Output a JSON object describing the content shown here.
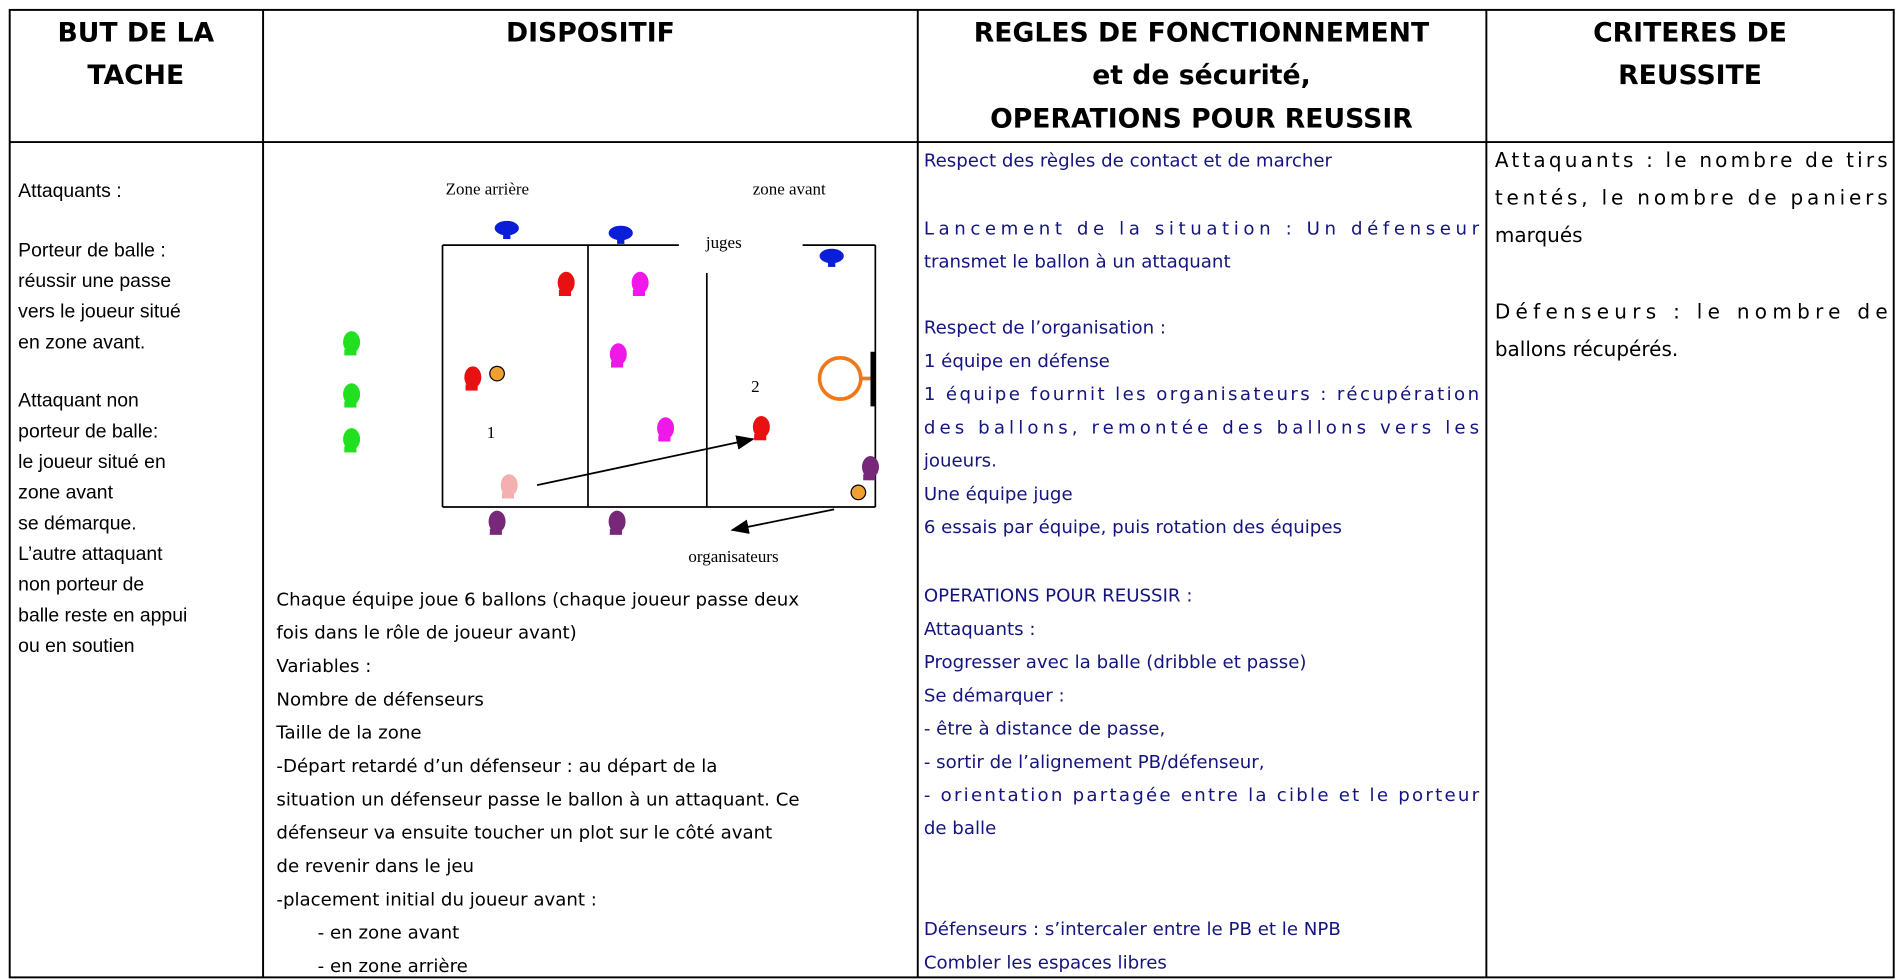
{
  "header": [
    [
      "BUT DE LA",
      "TACHE"
    ],
    [
      "DISPOSITIF"
    ],
    [
      "REGLES DE FONCTIONNEMENT",
      "et de sécurité,",
      "OPERATIONS POUR REUSSIR"
    ],
    [
      "CRITERES DE",
      "REUSSITE"
    ]
  ],
  "but": [
    [
      "Attaquants :"
    ],
    [
      "Porteur de balle :",
      "réussir une passe",
      "vers le  joueur situé",
      "en zone avant."
    ],
    [
      "Attaquant non",
      "porteur de balle:",
      " le joueur situé en",
      "zone avant",
      "se démarque.",
      "L’autre attaquant",
      "non porteur de",
      "balle reste en appui",
      "ou en soutien"
    ]
  ],
  "dispositif": {
    "diagram": {
      "zone_arriere": "Zone arrière",
      "zone_avant": "zone avant",
      "juges": "juges",
      "label_2": "2",
      "label_1": "1",
      "organisateurs": "organisateurs"
    },
    "text": [
      "Chaque équipe joue 6 ballons (chaque joueur passe deux",
      "fois dans le rôle de joueur avant)",
      "Variables :",
      "Nombre de défenseurs",
      "Taille de la zone",
      "-Départ retardé d’un défenseur : au départ de la",
      "situation un défenseur passe le ballon à un attaquant. Ce",
      "défenseur va ensuite toucher un plot sur le côté avant",
      "de revenir dans le jeu",
      "-placement initial du  joueur avant :",
      "- en zone  avant",
      "- en zone arrière"
    ]
  },
  "regles": [
    [
      "Respect des règles de contact et de marcher"
    ],
    [
      "Lancement de la situation : Un défenseur",
      "transmet le ballon à un attaquant"
    ],
    [
      "Respect de l’organisation :",
      "1 équipe en défense",
      "1 équipe fournit les organisateurs : récupération",
      "des ballons, remontée des ballons vers les",
      "joueurs.",
      "Une équipe juge",
      "6 essais par équipe, puis rotation des équipes"
    ],
    [
      "OPERATIONS POUR REUSSIR :",
      "Attaquants :",
      "Progresser avec la balle (dribble et passe)",
      "Se démarquer :",
      "- être à distance de passe,",
      "- sortir de l’alignement PB/défenseur,",
      "- orientation partagée entre la cible et le porteur",
      "de balle"
    ],
    [
      "Défenseurs : s’intercaler entre le PB et le NPB",
      "Combler les espaces libres"
    ]
  ],
  "criteres": [
    [
      "Attaquants : le nombre de tirs",
      "tentés, le nombre de paniers",
      "marqués"
    ],
    [
      "Défenseurs : le nombre de",
      "ballons récupérés."
    ]
  ]
}
